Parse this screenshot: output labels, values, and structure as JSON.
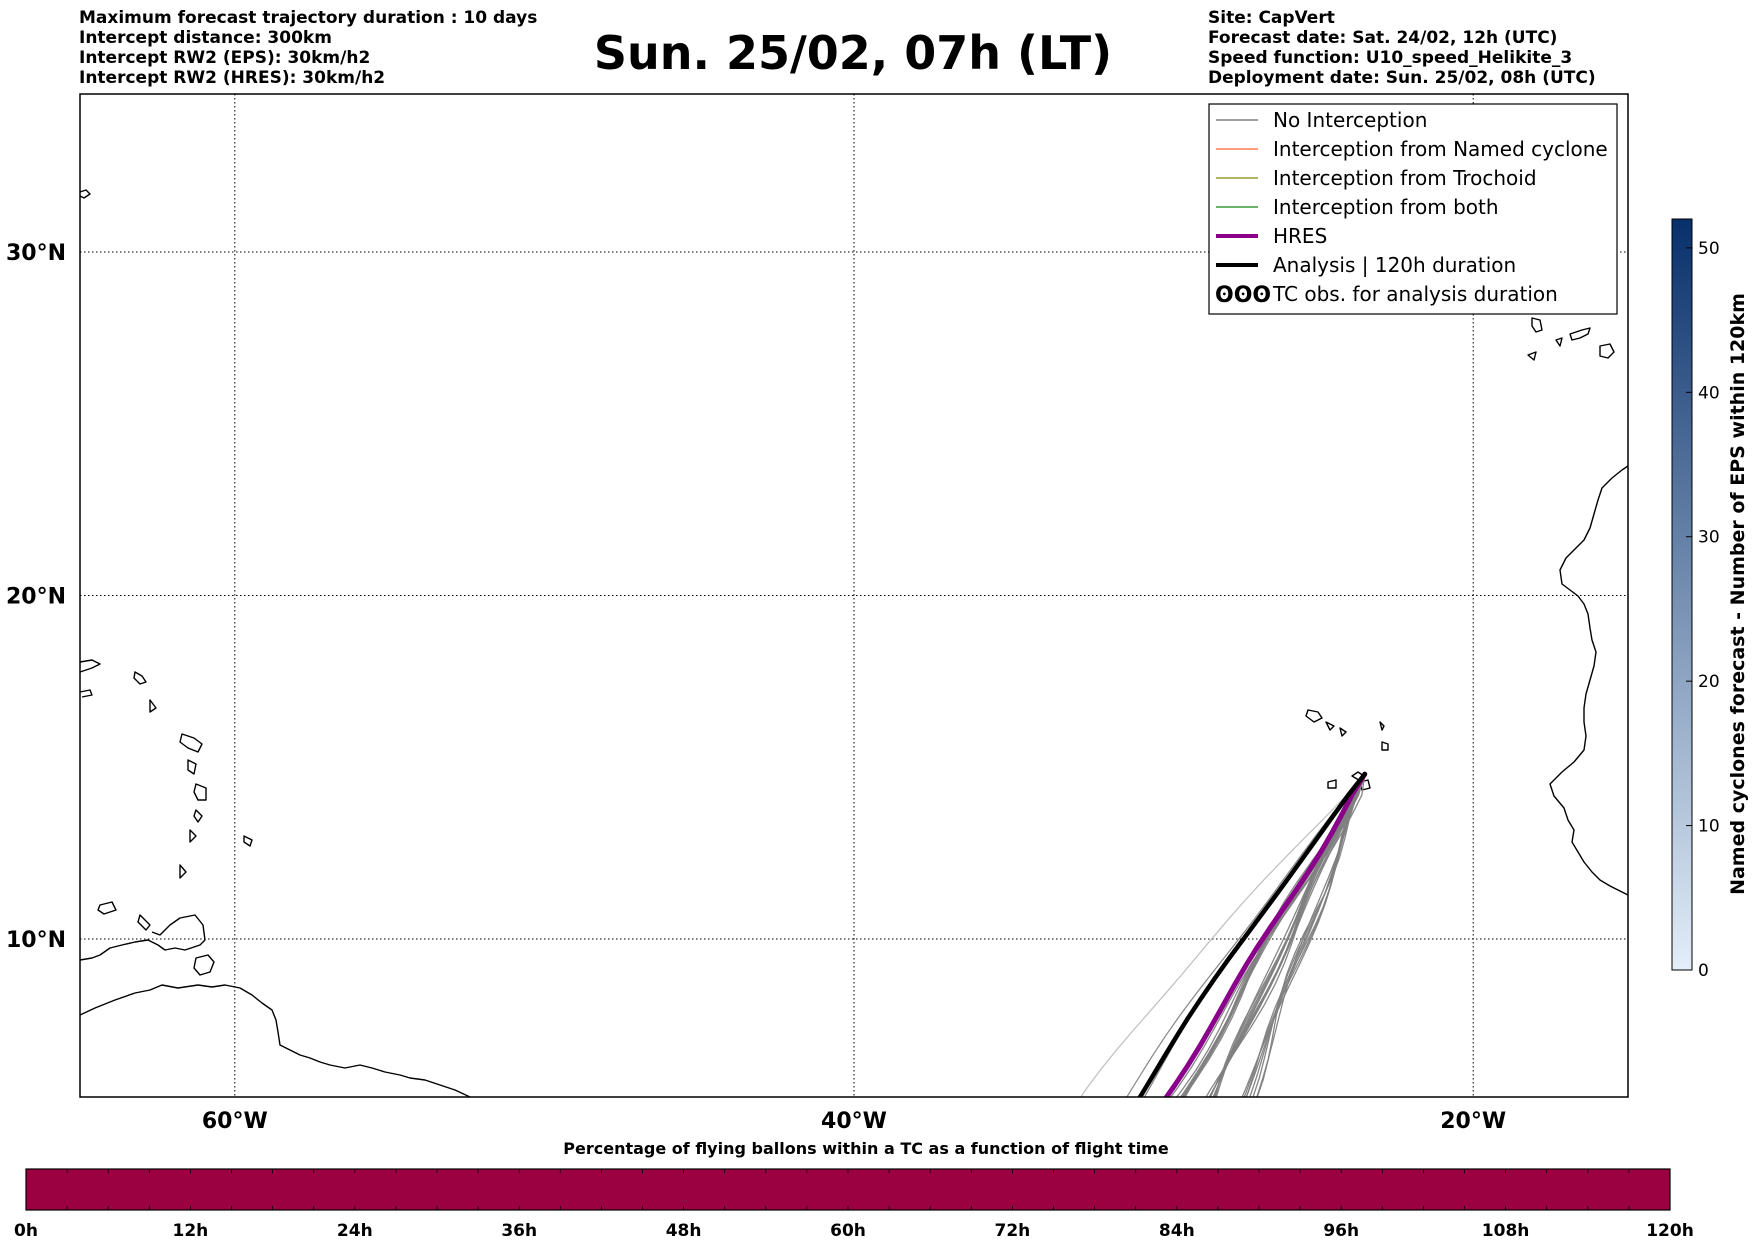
{
  "header": {
    "left": [
      "Maximum forecast trajectory duration : 10 days",
      "Intercept distance: 300km",
      "Intercept RW2 (EPS):  30km/h2",
      "Intercept RW2 (HRES): 30km/h2"
    ],
    "title": "Sun. 25/02, 07h (LT)",
    "right": [
      "Site: CapVert",
      "Forecast date: Sat. 24/02, 12h (UTC)",
      "Speed function: U10_speed_Helikite_3",
      "Deployment date: Sun. 25/02, 08h (UTC)"
    ]
  },
  "map": {
    "lon_range": [
      -65,
      -15
    ],
    "lat_range": [
      5.4,
      34.6
    ],
    "lat_ticks": [
      {
        "value": 30,
        "label": "30°N"
      },
      {
        "value": 20,
        "label": "20°N"
      },
      {
        "value": 10,
        "label": "10°N"
      }
    ],
    "lon_ticks": [
      {
        "value": -60,
        "label": "60°W"
      },
      {
        "value": -40,
        "label": "40°W"
      },
      {
        "value": -20,
        "label": "20°W"
      }
    ],
    "grid": "dotted",
    "launch_site": {
      "lon": -23.5,
      "lat": 14.8
    },
    "colors": {
      "no_interception": "#7f7f7f",
      "named_cyclone": "#ff7f50",
      "trochoid": "#999933",
      "both": "#3a9a3a",
      "hres": "#8b008b",
      "analysis": "#000000"
    }
  },
  "legend": {
    "placement": "top-right",
    "entries": [
      {
        "label": "No Interception",
        "style": "thin",
        "color": "#7f7f7f"
      },
      {
        "label": "Interception from Named cyclone",
        "style": "thin",
        "color": "#ff7f50"
      },
      {
        "label": "Interception from Trochoid",
        "style": "thin",
        "color": "#999933"
      },
      {
        "label": "Interception from both",
        "style": "thin",
        "color": "#3a9a3a"
      },
      {
        "label": "HRES",
        "style": "thick",
        "color": "#8b008b"
      },
      {
        "label": "Analysis | 120h duration",
        "style": "thick",
        "color": "#000000"
      },
      {
        "label": "TC obs. for analysis duration",
        "style": "symbol",
        "symbol": "ʘʘʘ",
        "color": "#000000"
      }
    ]
  },
  "colorbar_right": {
    "label": "Named cyclones forecast - Number of EPS within 120km",
    "min": 0,
    "max": 52,
    "ticks": [
      0,
      10,
      20,
      30,
      40,
      50
    ],
    "color_low": "#e3eef9",
    "color_high": "#08306b"
  },
  "colorbar_bottom": {
    "title": "Percentage of flying ballons within a TC as a function of flight time",
    "ticks": [
      "0h",
      "12h",
      "24h",
      "36h",
      "48h",
      "60h",
      "72h",
      "84h",
      "96h",
      "108h",
      "120h"
    ],
    "fill_color": "#9b0040",
    "fill_fraction": 1.0
  }
}
